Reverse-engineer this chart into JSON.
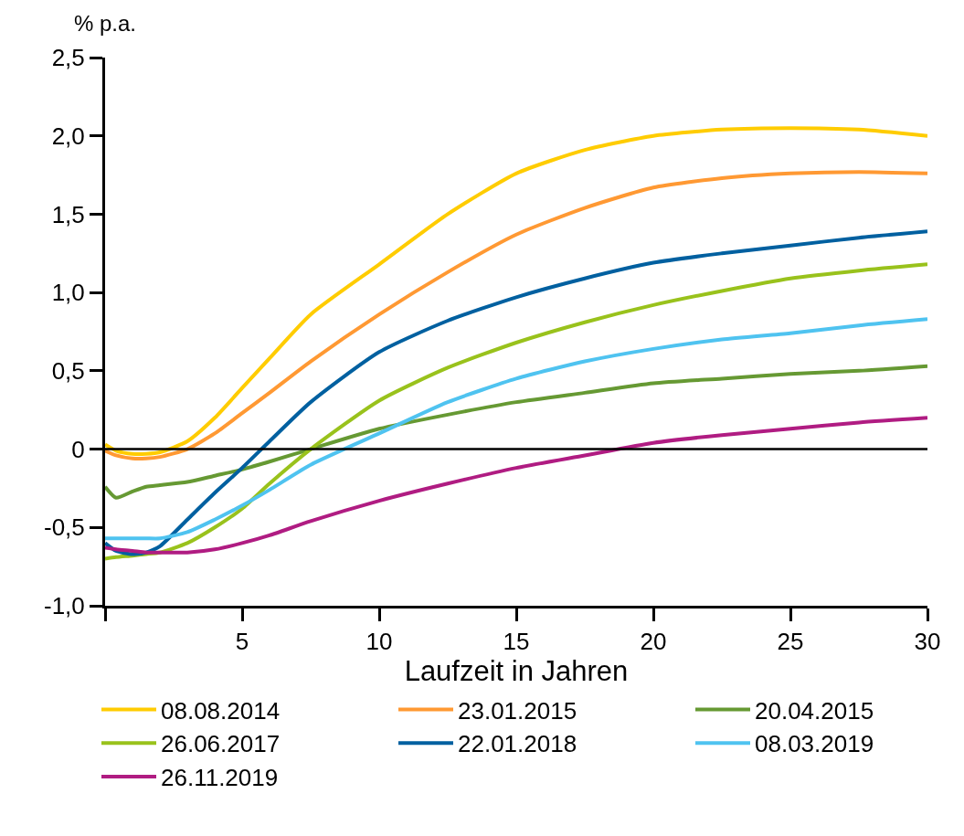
{
  "chart_data": {
    "type": "line",
    "ylabel": "% p.a.",
    "xlabel": "Laufzeit in Jahren",
    "x": [
      0,
      0.4,
      1,
      1.5,
      2,
      3,
      4,
      5,
      6,
      7.5,
      10,
      12.5,
      15,
      17.5,
      20,
      22.5,
      25,
      27.5,
      30
    ],
    "series": [
      {
        "name": "08.08.2014",
        "color": "#ffcc00",
        "values": [
          0.03,
          -0.01,
          -0.03,
          -0.03,
          -0.02,
          0.05,
          0.2,
          0.39,
          0.58,
          0.86,
          1.18,
          1.5,
          1.76,
          1.91,
          2.0,
          2.04,
          2.05,
          2.04,
          2.0
        ]
      },
      {
        "name": "23.01.2015",
        "color": "#ff9933",
        "values": [
          -0.01,
          -0.04,
          -0.06,
          -0.06,
          -0.05,
          0.0,
          0.1,
          0.23,
          0.36,
          0.56,
          0.86,
          1.13,
          1.37,
          1.54,
          1.67,
          1.73,
          1.76,
          1.77,
          1.76
        ]
      },
      {
        "name": "20.04.2015",
        "color": "#669933",
        "values": [
          -0.24,
          -0.31,
          -0.27,
          -0.24,
          -0.23,
          -0.21,
          -0.17,
          -0.13,
          -0.08,
          0.0,
          0.13,
          0.22,
          0.3,
          0.36,
          0.42,
          0.45,
          0.48,
          0.5,
          0.53
        ]
      },
      {
        "name": "26.06.2017",
        "color": "#99c21c",
        "values": [
          -0.7,
          -0.69,
          -0.68,
          -0.67,
          -0.66,
          -0.6,
          -0.5,
          -0.38,
          -0.22,
          0.0,
          0.31,
          0.52,
          0.68,
          0.81,
          0.92,
          1.01,
          1.09,
          1.14,
          1.18
        ]
      },
      {
        "name": "22.01.2018",
        "color": "#0060a0",
        "values": [
          -0.6,
          -0.65,
          -0.67,
          -0.66,
          -0.62,
          -0.45,
          -0.28,
          -0.12,
          0.05,
          0.3,
          0.62,
          0.82,
          0.97,
          1.09,
          1.19,
          1.25,
          1.3,
          1.35,
          1.39
        ]
      },
      {
        "name": "08.03.2019",
        "color": "#4fc3f0",
        "values": [
          -0.57,
          -0.57,
          -0.57,
          -0.57,
          -0.57,
          -0.53,
          -0.45,
          -0.36,
          -0.26,
          -0.1,
          0.1,
          0.3,
          0.45,
          0.56,
          0.64,
          0.7,
          0.74,
          0.79,
          0.83
        ]
      },
      {
        "name": "26.11.2019",
        "color": "#b01c82",
        "values": [
          -0.63,
          -0.64,
          -0.65,
          -0.66,
          -0.66,
          -0.66,
          -0.64,
          -0.6,
          -0.55,
          -0.46,
          -0.33,
          -0.22,
          -0.12,
          -0.04,
          0.04,
          0.09,
          0.13,
          0.17,
          0.2
        ]
      }
    ],
    "xlim": [
      0,
      30
    ],
    "xticks": [
      {
        "value": 0,
        "label": null
      },
      5,
      10,
      15,
      20,
      25,
      30
    ],
    "ylim": [
      -1.0,
      2.5
    ],
    "yticks": [
      {
        "value": -1.0,
        "label": "-1,0"
      },
      {
        "value": -0.5,
        "label": "-0,5"
      },
      0,
      {
        "value": 0.5,
        "label": "0,5"
      },
      {
        "value": 1.0,
        "label": "1,0"
      },
      {
        "value": 1.5,
        "label": "1,5"
      },
      {
        "value": 2.0,
        "label": "2,0"
      },
      {
        "value": 2.5,
        "label": "2,5"
      }
    ],
    "ref_lines": [
      {
        "axis": "y",
        "value": 0,
        "color": "#000000"
      }
    ],
    "legend": "bottom",
    "marker": "none",
    "line_style": "solid"
  }
}
